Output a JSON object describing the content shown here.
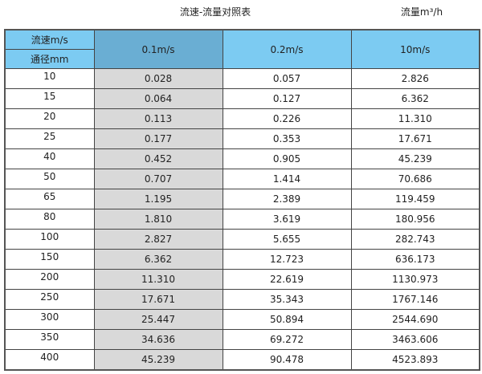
{
  "title": "流速-流量对照表",
  "unit": "流量m³/h",
  "header": {
    "velocity_label": "流速m/s",
    "diameter_label": "通径mm",
    "columns": [
      "0.1m/s",
      "0.2m/s",
      "10m/s"
    ]
  },
  "colors": {
    "header": "#7ccbf2",
    "header_highlight": "#6aaed3",
    "highlight_column": "#d9d9d9"
  },
  "rows": [
    {
      "dn": "10",
      "v": [
        "0.028",
        "0.057",
        "2.826"
      ]
    },
    {
      "dn": "15",
      "v": [
        "0.064",
        "0.127",
        "6.362"
      ]
    },
    {
      "dn": "20",
      "v": [
        "0.113",
        "0.226",
        "11.310"
      ]
    },
    {
      "dn": "25",
      "v": [
        "0.177",
        "0.353",
        "17.671"
      ]
    },
    {
      "dn": "40",
      "v": [
        "0.452",
        "0.905",
        "45.239"
      ]
    },
    {
      "dn": "50",
      "v": [
        "0.707",
        "1.414",
        "70.686"
      ]
    },
    {
      "dn": "65",
      "v": [
        "1.195",
        "2.389",
        "119.459"
      ]
    },
    {
      "dn": "80",
      "v": [
        "1.810",
        "3.619",
        "180.956"
      ]
    },
    {
      "dn": "100",
      "v": [
        "2.827",
        "5.655",
        "282.743"
      ]
    },
    {
      "dn": "150",
      "v": [
        "6.362",
        "12.723",
        "636.173"
      ]
    },
    {
      "dn": "200",
      "v": [
        "11.310",
        "22.619",
        "1130.973"
      ]
    },
    {
      "dn": "250",
      "v": [
        "17.671",
        "35.343",
        "1767.146"
      ]
    },
    {
      "dn": "300",
      "v": [
        "25.447",
        "50.894",
        "2544.690"
      ]
    },
    {
      "dn": "350",
      "v": [
        "34.636",
        "69.272",
        "3463.606"
      ]
    },
    {
      "dn": "400",
      "v": [
        "45.239",
        "90.478",
        "4523.893"
      ]
    }
  ]
}
